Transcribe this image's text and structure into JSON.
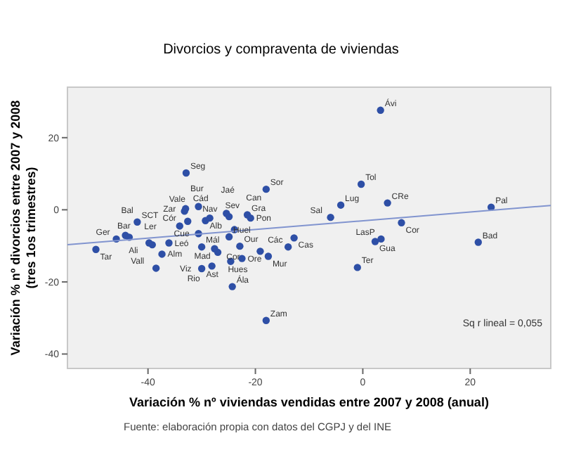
{
  "chart_data": {
    "type": "scatter",
    "title": "Divorcios y compraventa de viviendas",
    "xlabel": "Variación % nº viviendas vendidas entre 2007 y 2008 (anual)",
    "ylabel": "Variación % nº divorcios entre 2007 y 2008\n(tres 1os trimestres)",
    "xlim": [
      -55,
      35
    ],
    "ylim": [
      -44,
      34
    ],
    "xticks": [
      -40,
      -20,
      0,
      20
    ],
    "yticks": [
      -40,
      -20,
      0,
      20
    ],
    "grid": false,
    "series": [
      {
        "color": "#2e4fa6",
        "marker": "circle",
        "x": [
          3.3,
          -0.3,
          -4.1,
          4.6,
          7.2,
          -6,
          2.3,
          3.4,
          -1,
          23.9,
          21.5,
          -12.8,
          -13.9,
          -17.6,
          -19.1,
          -22.5,
          -24.6,
          -24.3,
          -18,
          -27,
          -22.9,
          -27.6,
          -30,
          -28.1,
          -30,
          -37.4,
          -38.5,
          -39.8,
          -39.2,
          -36.1,
          -30.6,
          -49.7,
          -45.9,
          -44.2,
          -43.5,
          -42,
          -34.1,
          -33.2,
          -32.6,
          -33,
          -32.9,
          -30.6,
          -29.3,
          -28.5,
          -24.9,
          -25.4,
          -21.5,
          -20.9,
          -24.9,
          -23.9,
          -18
        ],
        "values": [
          27.6,
          7.1,
          1.3,
          1.9,
          -3.6,
          -2.1,
          -8.8,
          -8.1,
          -16,
          0.7,
          -9,
          -7.8,
          -10.3,
          -12.9,
          -11.5,
          -13.5,
          -14.3,
          -21.3,
          -30.7,
          -11.8,
          -10.1,
          -10.8,
          -10.3,
          -15.6,
          -16.3,
          -12.3,
          -16.2,
          -9.2,
          -9.7,
          -9.2,
          -6.6,
          -11,
          -8.1,
          -7.1,
          -7.6,
          -3.4,
          -4.5,
          -0.4,
          -3.2,
          0.3,
          10.2,
          0.9,
          -3,
          -2.3,
          -1.9,
          -1,
          -1.4,
          -2.3,
          -7.5,
          -5.5,
          5.7
        ]
      },
      {
        "type": "line",
        "marker": "none",
        "color": "#8194cf",
        "x": [
          -55,
          35
        ],
        "values": [
          -9.7,
          1.2
        ]
      }
    ],
    "annotations": [
      {
        "text": "Ávi",
        "x": 3.3,
        "y": 27.6
      },
      {
        "text": "Tol",
        "x": -0.3,
        "y": 7.1
      },
      {
        "text": "Lug",
        "x": -4.1,
        "y": 1.3
      },
      {
        "text": "CRe",
        "x": 4.6,
        "y": 1.9
      },
      {
        "text": "Cor",
        "x": 7.2,
        "y": -3.6
      },
      {
        "text": "Sal",
        "x": -6,
        "y": -2.1
      },
      {
        "text": "Gua",
        "x": 2.3,
        "y": -8.8
      },
      {
        "text": "LasP",
        "x": 3.4,
        "y": -8.1
      },
      {
        "text": "Ter",
        "x": -1,
        "y": -16
      },
      {
        "text": "Pal",
        "x": 23.9,
        "y": 0.7
      },
      {
        "text": "Bad",
        "x": 21.5,
        "y": -9
      },
      {
        "text": "Cas",
        "x": -12.8,
        "y": -7.8
      },
      {
        "text": "Các",
        "x": -13.9,
        "y": -10.3
      },
      {
        "text": "Mur",
        "x": -17.6,
        "y": -12.9
      },
      {
        "text": "Hues",
        "x": -19.1,
        "y": -11.5
      },
      {
        "text": "Ore",
        "x": -22.5,
        "y": -13.5
      },
      {
        "text": "Ast",
        "x": -24.6,
        "y": -14.3
      },
      {
        "text": "Ála",
        "x": -24.3,
        "y": -21.3
      },
      {
        "text": "Zam",
        "x": -18,
        "y": -30.7
      },
      {
        "text": "Alb",
        "x": -27,
        "y": -11.8
      },
      {
        "text": "Our",
        "x": -22.9,
        "y": -10.1
      },
      {
        "text": "Mad",
        "x": -27.6,
        "y": -10.8
      },
      {
        "text": "Mál",
        "x": -30,
        "y": -10.3
      },
      {
        "text": "Rio",
        "x": -28.1,
        "y": -15.6
      },
      {
        "text": "Viz",
        "x": -30,
        "y": -16.3
      },
      {
        "text": "Alm",
        "x": -37.4,
        "y": -12.3
      },
      {
        "text": "Vall",
        "x": -38.5,
        "y": -16.2
      },
      {
        "text": "Ali",
        "x": -39.8,
        "y": -9.2
      },
      {
        "text": "Ler",
        "x": -39.2,
        "y": -9.7
      },
      {
        "text": "Leó",
        "x": -36.1,
        "y": -9.2
      },
      {
        "text": "Cór",
        "x": -30.6,
        "y": -6.6
      },
      {
        "text": "Tar",
        "x": -49.7,
        "y": -11
      },
      {
        "text": "Ger",
        "x": -45.9,
        "y": -8.1
      },
      {
        "text": "Bar",
        "x": -44.2,
        "y": -7.1
      },
      {
        "text": "Bal",
        "x": -43.5,
        "y": -7.6
      },
      {
        "text": "SCT",
        "x": -42,
        "y": -3.4
      },
      {
        "text": "Vale",
        "x": -34.1,
        "y": -4.5
      },
      {
        "text": "Cád",
        "x": -33.2,
        "y": -0.4
      },
      {
        "text": "Zar",
        "x": -32.6,
        "y": -3.2
      },
      {
        "text": "Nav",
        "x": -33,
        "y": 0.3
      },
      {
        "text": "Seg",
        "x": -32.9,
        "y": 10.2
      },
      {
        "text": "Bur",
        "x": -30.6,
        "y": 0.9
      },
      {
        "text": "Sev",
        "x": -29.3,
        "y": -3
      },
      {
        "text": "Cue",
        "x": -28.5,
        "y": -2.3
      },
      {
        "text": "Jaé",
        "x": -24.9,
        "y": -1.9
      },
      {
        "text": "Can",
        "x": -25.4,
        "y": -1
      },
      {
        "text": "Gra",
        "x": -21.5,
        "y": -1.4
      },
      {
        "text": "Pon",
        "x": -20.9,
        "y": -2.3
      },
      {
        "text": "Huel",
        "x": -24.9,
        "y": -7.5
      },
      {
        "text": "Cor",
        "x": -23.9,
        "y": -5.5
      },
      {
        "text": "Sor",
        "x": -18,
        "y": 5.7
      },
      "Sq r lineal = 0,055",
      "Fuente: elaboración propia con datos del CGPJ y del INE"
    ]
  }
}
